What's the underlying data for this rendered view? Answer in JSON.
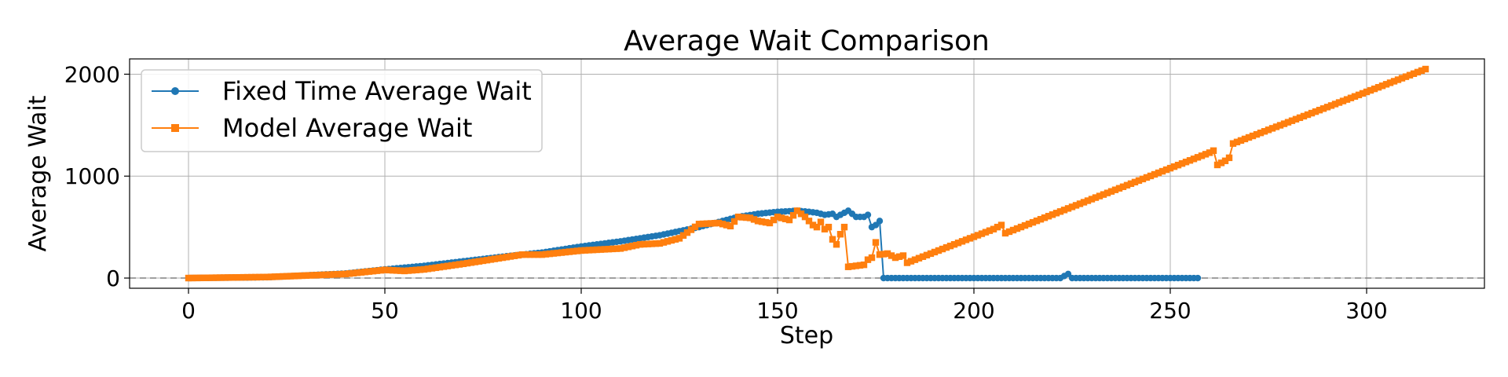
{
  "chart_data": {
    "type": "line",
    "title": "Average Wait Comparison",
    "xlabel": "Step",
    "ylabel": "Average Wait",
    "xlim": [
      -15,
      330
    ],
    "ylim": [
      -100,
      2150
    ],
    "xticks": [
      0,
      50,
      100,
      150,
      200,
      250,
      300
    ],
    "yticks": [
      0,
      1000,
      2000
    ],
    "grid": true,
    "legend_position": "top-left",
    "reference_line": {
      "y": 0,
      "style": "dashed",
      "color": "#808080"
    },
    "series": [
      {
        "name": "Fixed Time Average Wait",
        "color": "#1f77b4",
        "marker": "circle",
        "step": 1,
        "anchors": [
          [
            0,
            0
          ],
          [
            20,
            8
          ],
          [
            40,
            45
          ],
          [
            50,
            85
          ],
          [
            60,
            120
          ],
          [
            70,
            165
          ],
          [
            80,
            210
          ],
          [
            90,
            250
          ],
          [
            100,
            310
          ],
          [
            110,
            360
          ],
          [
            120,
            420
          ],
          [
            130,
            500
          ],
          [
            140,
            600
          ],
          [
            145,
            630
          ],
          [
            150,
            650
          ],
          [
            155,
            660
          ],
          [
            158,
            650
          ],
          [
            160,
            640
          ],
          [
            162,
            620
          ],
          [
            164,
            630
          ],
          [
            165,
            600
          ],
          [
            167,
            640
          ],
          [
            168,
            660
          ],
          [
            170,
            600
          ],
          [
            172,
            600
          ],
          [
            173,
            620
          ],
          [
            174,
            500
          ],
          [
            175,
            520
          ],
          [
            176,
            560
          ],
          [
            177,
            0
          ],
          [
            222,
            0
          ],
          [
            224,
            40
          ],
          [
            225,
            0
          ],
          [
            257,
            0
          ]
        ]
      },
      {
        "name": "Model Average Wait",
        "color": "#ff7f0e",
        "marker": "square",
        "step": 1,
        "anchors": [
          [
            0,
            0
          ],
          [
            20,
            10
          ],
          [
            40,
            40
          ],
          [
            50,
            80
          ],
          [
            55,
            70
          ],
          [
            60,
            85
          ],
          [
            70,
            140
          ],
          [
            80,
            200
          ],
          [
            85,
            230
          ],
          [
            90,
            230
          ],
          [
            100,
            270
          ],
          [
            110,
            290
          ],
          [
            115,
            330
          ],
          [
            120,
            340
          ],
          [
            125,
            390
          ],
          [
            130,
            530
          ],
          [
            135,
            540
          ],
          [
            138,
            510
          ],
          [
            140,
            600
          ],
          [
            143,
            590
          ],
          [
            145,
            560
          ],
          [
            148,
            540
          ],
          [
            150,
            600
          ],
          [
            153,
            570
          ],
          [
            155,
            660
          ],
          [
            157,
            600
          ],
          [
            159,
            520
          ],
          [
            160,
            500
          ],
          [
            161,
            550
          ],
          [
            162,
            480
          ],
          [
            163,
            500
          ],
          [
            164,
            380
          ],
          [
            165,
            330
          ],
          [
            166,
            430
          ],
          [
            167,
            500
          ],
          [
            168,
            110
          ],
          [
            172,
            130
          ],
          [
            173,
            180
          ],
          [
            174,
            200
          ],
          [
            175,
            350
          ],
          [
            176,
            230
          ],
          [
            178,
            240
          ],
          [
            180,
            200
          ],
          [
            182,
            220
          ],
          [
            183,
            150
          ],
          [
            205,
            480
          ],
          [
            207,
            520
          ],
          [
            208,
            440
          ],
          [
            260,
            1230
          ],
          [
            261,
            1250
          ],
          [
            262,
            1110
          ],
          [
            264,
            1150
          ],
          [
            265,
            1180
          ],
          [
            266,
            1320
          ],
          [
            315,
            2050
          ]
        ]
      }
    ]
  }
}
